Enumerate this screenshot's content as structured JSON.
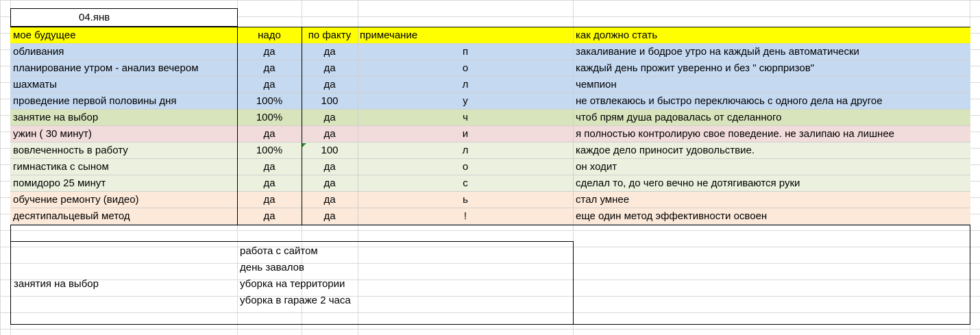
{
  "date": "04.янв",
  "headers": {
    "future": "мое будущее",
    "need": "надо",
    "fact": "по факту",
    "note": "примечание",
    "should": "как должно стать"
  },
  "rows": [
    {
      "name": "обливания",
      "need": "да",
      "fact": "да",
      "note": "п",
      "should": "закаливание и бодрое утро на каждый день  автоматически",
      "color": "#c5d9f1"
    },
    {
      "name": "планирование утром - анализ вечером",
      "need": "да",
      "fact": "да",
      "note": "о",
      "should": "каждый день прожит уверенно и без  \" сюрпризов\"",
      "color": "#c5d9f1"
    },
    {
      "name": "шахматы",
      "need": "да",
      "fact": "да",
      "note": "л",
      "should": "чемпион",
      "color": "#c5d9f1"
    },
    {
      "name": "проведение первой половины дня",
      "need": "100%",
      "fact": "100",
      "note": "у",
      "should": "не отвлекаюсь и быстро переключаюсь с одного дела на другое",
      "color": "#c5d9f1"
    },
    {
      "name": "занятие на выбор",
      "need": "100%",
      "fact": "да",
      "note": "ч",
      "should": "чтоб  прям душа радовалась от сделанного",
      "color": "#d8e4bc"
    },
    {
      "name": "ужин  ( 30 минут)",
      "need": "да",
      "fact": "да",
      "note": "и",
      "should": "я полностью контролирую свое поведение. не залипаю на лишнее",
      "color": "#f2dcdb"
    },
    {
      "name": "вовлеченность в работу",
      "need": "100%",
      "fact": "100",
      "note": "л",
      "should": "каждое дело приносит удовольствие.",
      "color": "#ebf1de"
    },
    {
      "name": "гимнастика с сыном",
      "need": "да",
      "fact": "да",
      "note": "о",
      "should": "он ходит",
      "color": "#ebf1de"
    },
    {
      "name": "помидоро  25 минут",
      "need": "да",
      "fact": "да",
      "note": "с",
      "should": "сделал то, до чего вечно не дотягиваются руки",
      "color": "#ebf1de"
    },
    {
      "name": "обучение ремонту (видео)",
      "need": "да",
      "fact": "да",
      "note": "ь",
      "should": "стал умнее",
      "color": "#fde9d9"
    },
    {
      "name": "десятипальцевый метод",
      "need": "да",
      "fact": "да",
      "note": "!",
      "should": "еще один метод эффективности освоен",
      "color": "#fde9d9"
    }
  ],
  "choices": {
    "label": "занятия на выбор",
    "items": [
      "работа с сайтом",
      "день завалов",
      "уборка на территории",
      "уборка в гараже   2 часа"
    ]
  },
  "colors": {
    "header": "#ffff00",
    "blue": "#c5d9f1",
    "green_dark": "#d8e4bc",
    "pink": "#f2dcdb",
    "green_light": "#ebf1de",
    "peach": "#fde9d9"
  }
}
